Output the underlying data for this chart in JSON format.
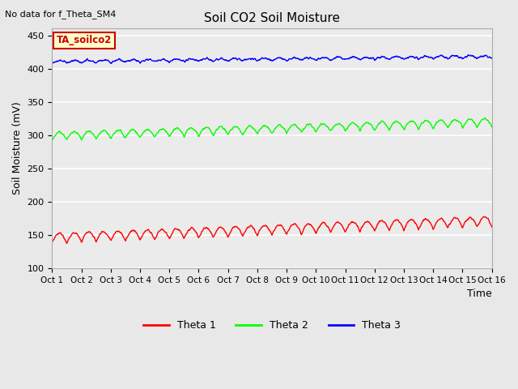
{
  "title": "Soil CO2 Soil Moisture",
  "ylabel": "Soil Moisture (mV)",
  "xlabel": "Time",
  "top_left_text": "No data for f_Theta_SM4",
  "annotation_box_text": "TA_soilco2",
  "annotation_box_color": "#FFFFCC",
  "annotation_box_edge_color": "#CC0000",
  "ylim": [
    100,
    460
  ],
  "yticks": [
    100,
    150,
    200,
    250,
    300,
    350,
    400,
    450
  ],
  "num_points": 1500,
  "days": 15,
  "theta1_base": 137,
  "theta1_trend": 1.7,
  "theta1_amp": 15,
  "theta1_freq": 2.0,
  "theta2_base": 292,
  "theta2_trend": 1.4,
  "theta2_amp": 12,
  "theta2_freq": 2.0,
  "theta3_base": 408,
  "theta3_trend": 0.5,
  "theta3_amp": 4,
  "theta3_freq": 2.0,
  "colors": {
    "theta1": "#FF0000",
    "theta2": "#00FF00",
    "theta3": "#0000FF"
  },
  "bg_color": "#E8E8E8",
  "axes_bg": "#EBEBEB",
  "grid_color": "#FFFFFF",
  "legend_labels": [
    "Theta 1",
    "Theta 2",
    "Theta 3"
  ],
  "xtick_labels": [
    "Oct 1",
    "Oct 2",
    "Oct 3",
    "Oct 4",
    "Oct 5",
    "Oct 6",
    "Oct 7",
    "Oct 8",
    "Oct 9",
    "Oct 10",
    "Oct 11",
    "Oct 12",
    "Oct 13",
    "Oct 14",
    "Oct 15",
    "Oct 16"
  ],
  "figsize": [
    6.4,
    4.8
  ],
  "dpi": 100
}
